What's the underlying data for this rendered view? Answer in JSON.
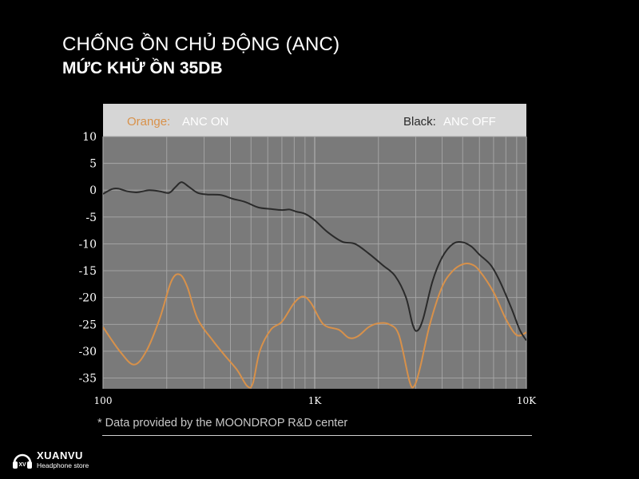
{
  "header": {
    "title": "CHỐNG ỒN CHỦ ĐỘNG (ANC)",
    "subtitle": "MỨC KHỬ ỒN 35DB"
  },
  "footer": {
    "note": "* Data provided by the MOONDROP R&D center"
  },
  "brand": {
    "name": "XUANVU",
    "tagline": "Headphone store"
  },
  "chart_data": {
    "type": "line",
    "x_scale": "log",
    "xlim": [
      100,
      10000
    ],
    "ylim": [
      -37,
      10
    ],
    "x_ticks": [
      {
        "value": 100,
        "label": "100"
      },
      {
        "value": 1000,
        "label": "1K"
      },
      {
        "value": 10000,
        "label": "10K"
      }
    ],
    "y_ticks": [
      10,
      5,
      0,
      -5,
      -10,
      -15,
      -20,
      -25,
      -30,
      -35
    ],
    "grid": true,
    "legend": {
      "left": {
        "key": "Orange:",
        "value": "ANC ON"
      },
      "right": {
        "key": "Black:",
        "value": "ANC OFF"
      }
    },
    "colors": {
      "orange": "#d8914a",
      "black": "#2a2a2a",
      "plot_bg": "#7a7a7a",
      "legend_bg": "#d6d6d6",
      "grid": "#a8a8a8"
    },
    "series": [
      {
        "name": "ANC OFF",
        "color": "#2a2a2a",
        "points": [
          [
            100,
            -0.7
          ],
          [
            110,
            0.2
          ],
          [
            118,
            0.3
          ],
          [
            130,
            -0.2
          ],
          [
            145,
            -0.4
          ],
          [
            165,
            0
          ],
          [
            185,
            -0.2
          ],
          [
            205,
            -0.5
          ],
          [
            220,
            0.6
          ],
          [
            235,
            1.5
          ],
          [
            255,
            0.6
          ],
          [
            280,
            -0.5
          ],
          [
            310,
            -0.8
          ],
          [
            360,
            -0.9
          ],
          [
            410,
            -1.6
          ],
          [
            470,
            -2.2
          ],
          [
            540,
            -3.2
          ],
          [
            620,
            -3.5
          ],
          [
            700,
            -3.7
          ],
          [
            760,
            -3.6
          ],
          [
            820,
            -4
          ],
          [
            900,
            -4.4
          ],
          [
            1000,
            -5.6
          ],
          [
            1150,
            -7.8
          ],
          [
            1350,
            -9.6
          ],
          [
            1550,
            -10
          ],
          [
            1800,
            -11.8
          ],
          [
            2100,
            -14
          ],
          [
            2400,
            -16
          ],
          [
            2700,
            -20
          ],
          [
            2900,
            -25
          ],
          [
            3050,
            -26.2
          ],
          [
            3250,
            -24
          ],
          [
            3600,
            -17
          ],
          [
            4000,
            -12.5
          ],
          [
            4500,
            -10
          ],
          [
            5000,
            -9.7
          ],
          [
            5500,
            -10.5
          ],
          [
            6000,
            -12
          ],
          [
            6800,
            -14
          ],
          [
            7500,
            -17
          ],
          [
            8500,
            -22
          ],
          [
            9300,
            -26
          ],
          [
            10000,
            -28
          ]
        ]
      },
      {
        "name": "ANC ON",
        "color": "#d8914a",
        "points": [
          [
            100,
            -25.5
          ],
          [
            120,
            -30
          ],
          [
            140,
            -32.5
          ],
          [
            160,
            -30
          ],
          [
            185,
            -24
          ],
          [
            210,
            -17
          ],
          [
            230,
            -15.7
          ],
          [
            250,
            -18
          ],
          [
            280,
            -24
          ],
          [
            330,
            -28
          ],
          [
            380,
            -31
          ],
          [
            430,
            -33.5
          ],
          [
            480,
            -36.5
          ],
          [
            510,
            -36
          ],
          [
            550,
            -30
          ],
          [
            620,
            -26
          ],
          [
            700,
            -24.5
          ],
          [
            800,
            -21
          ],
          [
            880,
            -19.8
          ],
          [
            960,
            -21
          ],
          [
            1100,
            -25
          ],
          [
            1300,
            -26
          ],
          [
            1450,
            -27.5
          ],
          [
            1600,
            -27.2
          ],
          [
            1800,
            -25.5
          ],
          [
            2000,
            -24.8
          ],
          [
            2250,
            -25
          ],
          [
            2500,
            -27
          ],
          [
            2800,
            -35.5
          ],
          [
            2950,
            -36.5
          ],
          [
            3150,
            -33
          ],
          [
            3500,
            -25
          ],
          [
            4000,
            -18
          ],
          [
            4500,
            -15
          ],
          [
            5000,
            -13.8
          ],
          [
            5500,
            -13.8
          ],
          [
            6000,
            -15
          ],
          [
            7000,
            -19
          ],
          [
            8000,
            -24
          ],
          [
            9000,
            -27
          ],
          [
            10000,
            -26.5
          ]
        ]
      }
    ]
  }
}
